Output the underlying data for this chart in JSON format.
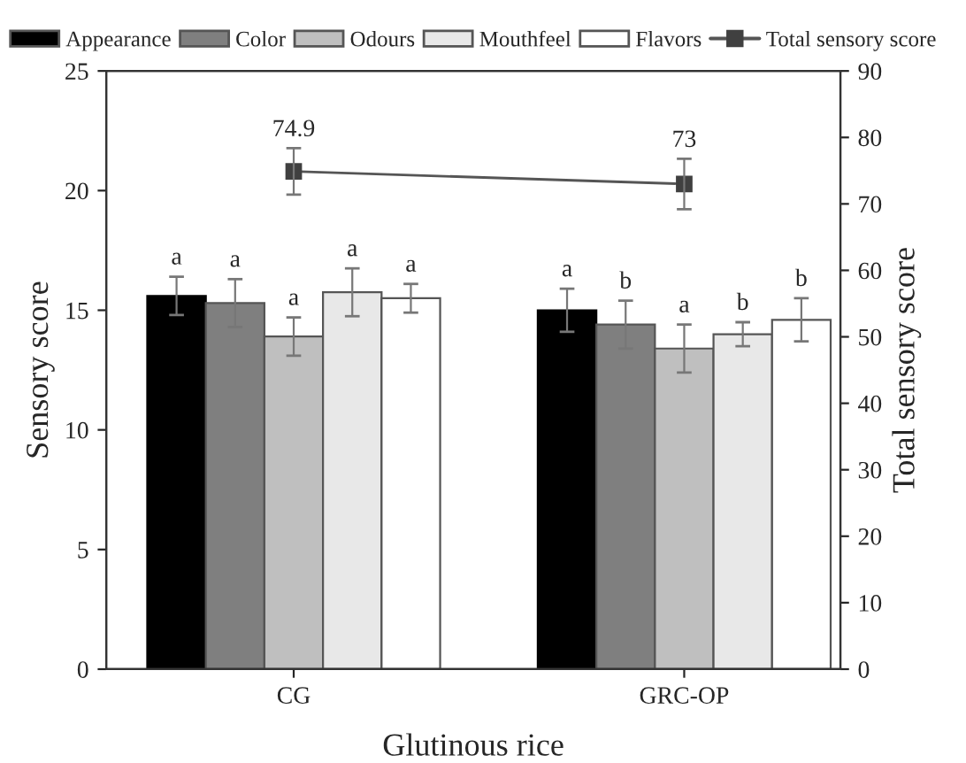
{
  "chart_data": {
    "type": "bar",
    "xlabel": "Glutinous rice",
    "ylabel": "Sensory score",
    "y2label": "Total sensory score",
    "categories": [
      "CG",
      "GRC-OP"
    ],
    "series": [
      {
        "name": "Appearance",
        "color": "#000000",
        "values": [
          15.6,
          15.0
        ],
        "errors": [
          0.8,
          0.9
        ],
        "value_labels": [
          "a",
          "a"
        ]
      },
      {
        "name": "Color",
        "color": "#7f7f7f",
        "values": [
          15.3,
          14.4
        ],
        "errors": [
          1.0,
          1.0
        ],
        "value_labels": [
          "a",
          "b"
        ]
      },
      {
        "name": "Odours",
        "color": "#bfbfbf",
        "values": [
          13.9,
          13.4
        ],
        "errors": [
          0.8,
          1.0
        ],
        "value_labels": [
          "a",
          "a"
        ]
      },
      {
        "name": "Mouthfeel",
        "color": "#e8e8e8",
        "values": [
          15.75,
          14.0
        ],
        "errors": [
          1.0,
          0.5
        ],
        "value_labels": [
          "a",
          "b"
        ]
      },
      {
        "name": "Flavors",
        "color": "#ffffff",
        "values": [
          15.5,
          14.6
        ],
        "errors": [
          0.6,
          0.9
        ],
        "value_labels": [
          "a",
          "b"
        ]
      },
      {
        "name": "Total sensory score",
        "type": "line",
        "axis": "y2",
        "color": "#555555",
        "values": [
          74.9,
          73
        ],
        "errors": [
          3.5,
          3.8
        ],
        "value_labels": [
          "74.9",
          "73"
        ]
      }
    ],
    "ylim": [
      0,
      25
    ],
    "yticks": [
      0,
      5,
      10,
      15,
      20,
      25
    ],
    "y2lim": [
      0,
      90
    ],
    "y2ticks": [
      0,
      10,
      20,
      30,
      40,
      50,
      60,
      70,
      80,
      90
    ],
    "marker": "square",
    "legend": "top"
  }
}
